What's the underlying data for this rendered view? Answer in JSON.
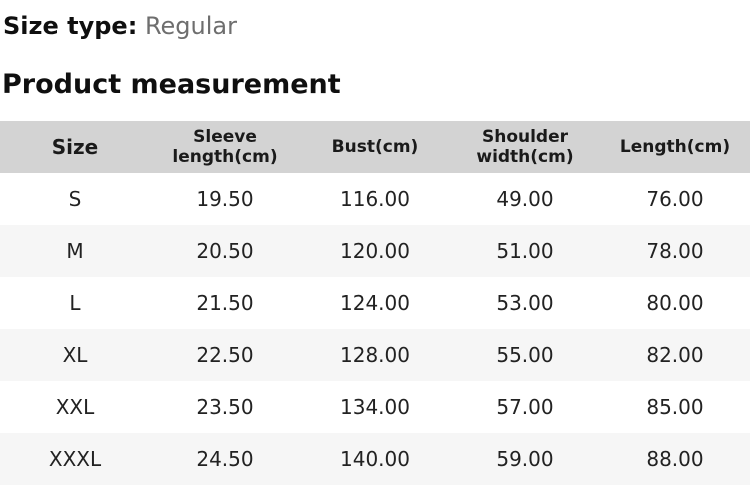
{
  "page": {
    "size_type_label": "Size type:",
    "size_type_value": "Regular",
    "section_title": "Product measurement"
  },
  "table": {
    "columns": [
      {
        "lines": [
          "Size"
        ]
      },
      {
        "lines": [
          "Sleeve",
          "length(cm)"
        ]
      },
      {
        "lines": [
          "Bust(cm)"
        ]
      },
      {
        "lines": [
          "Shoulder",
          "width(cm)"
        ]
      },
      {
        "lines": [
          "Length(cm)"
        ]
      }
    ],
    "rows": [
      [
        "S",
        "19.50",
        "116.00",
        "49.00",
        "76.00"
      ],
      [
        "M",
        "20.50",
        "120.00",
        "51.00",
        "78.00"
      ],
      [
        "L",
        "21.50",
        "124.00",
        "53.00",
        "80.00"
      ],
      [
        "XL",
        "22.50",
        "128.00",
        "55.00",
        "82.00"
      ],
      [
        "XXL",
        "23.50",
        "134.00",
        "57.00",
        "85.00"
      ],
      [
        "XXXL",
        "24.50",
        "140.00",
        "59.00",
        "88.00"
      ]
    ]
  },
  "colors": {
    "header_bg": "#d3d3d3",
    "row_alt_bg": "#f6f6f6",
    "muted_text": "#6e6e6e"
  }
}
